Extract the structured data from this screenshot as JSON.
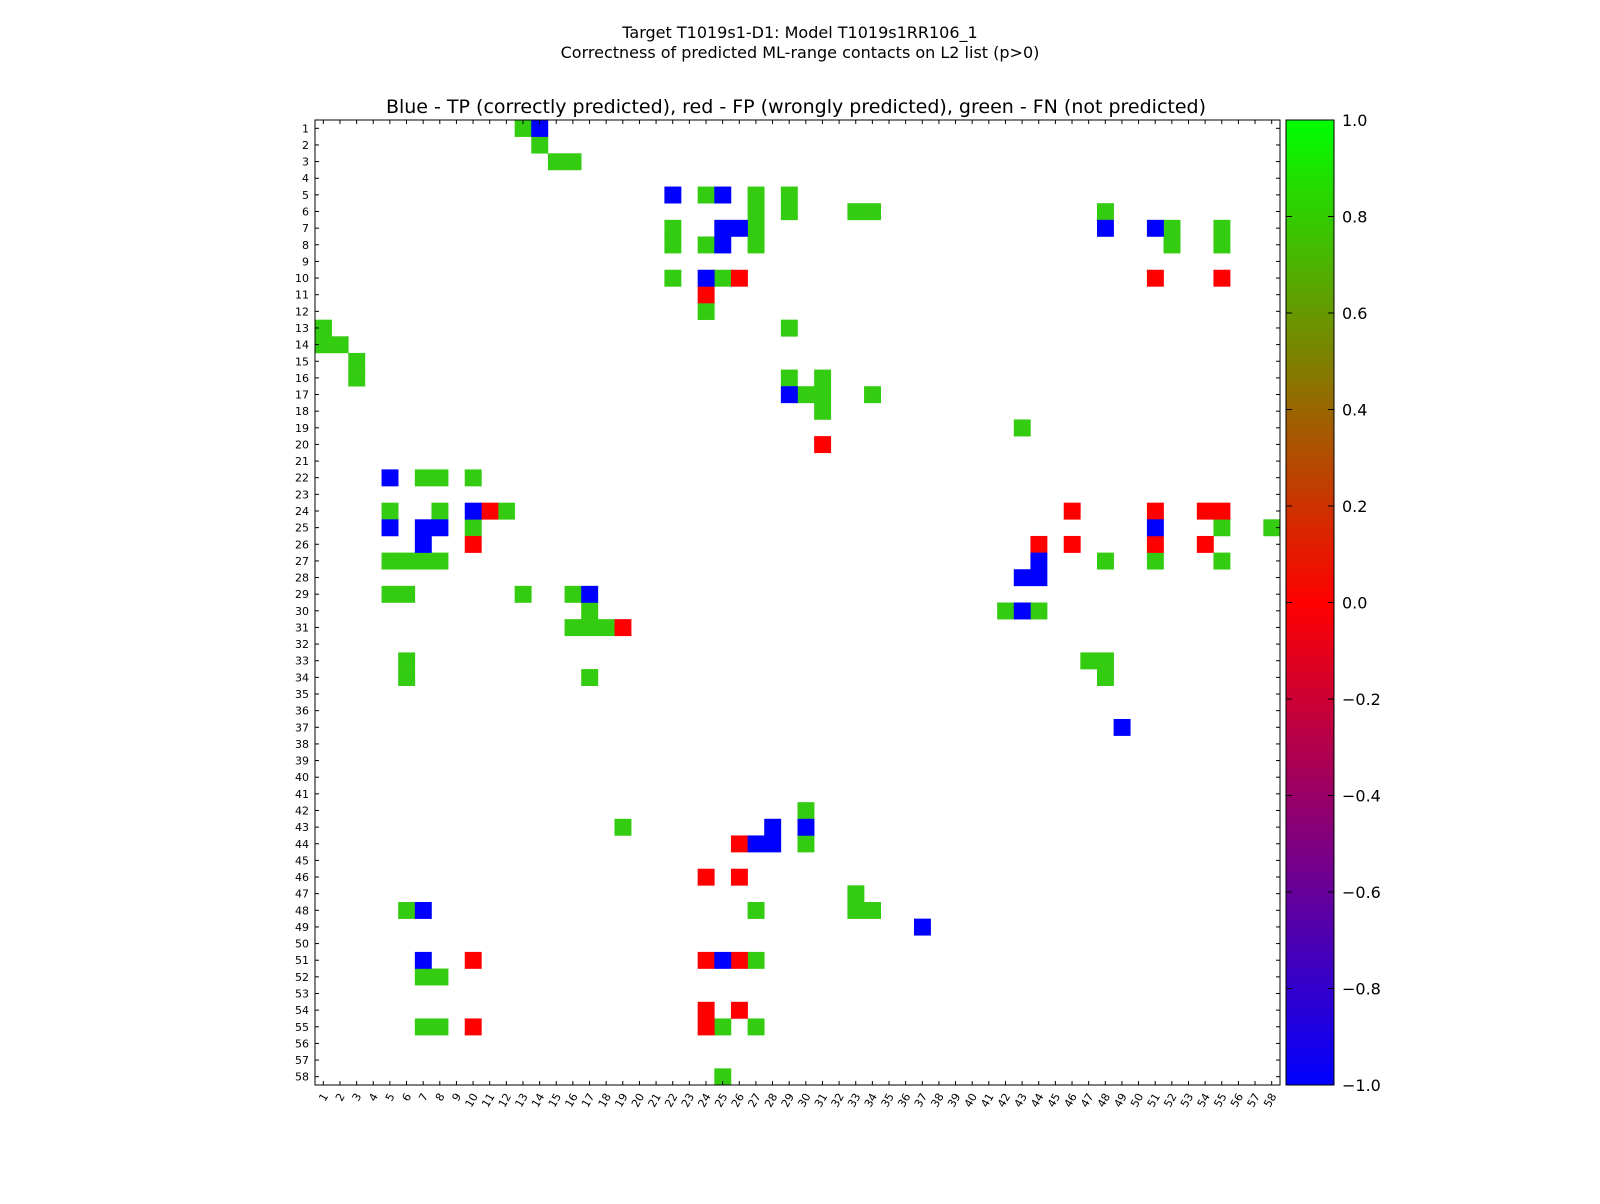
{
  "chart_data": {
    "type": "heatmap",
    "suptitle_line1": "Target T1019s1-D1: Model T1019s1RR106_1",
    "suptitle_line2": "Correctness of predicted ML-range contacts on L2 list (p>0)",
    "title": "Blue - TP (correctly predicted), red - FP (wrongly predicted), green - FN (not predicted)",
    "xlabel": "",
    "ylabel": "",
    "n": 58,
    "x_range": [
      1,
      58
    ],
    "y_range": [
      1,
      58
    ],
    "colorbar": {
      "range": [
        -1.0,
        1.0
      ],
      "ticks": [
        "1.0",
        "0.8",
        "0.6",
        "0.4",
        "0.2",
        "0.0",
        "−0.2",
        "−0.4",
        "−0.6",
        "−0.8",
        "−1.0"
      ],
      "tick_values": [
        1.0,
        0.8,
        0.6,
        0.4,
        0.2,
        0.0,
        -0.2,
        -0.4,
        -0.6,
        -0.8,
        -1.0
      ],
      "stops": [
        {
          "value": -1.0,
          "color": "#0000ff"
        },
        {
          "value": 0.0,
          "color": "#ff0000"
        },
        {
          "value": 1.0,
          "color": "#00ff00"
        }
      ]
    },
    "category_colors": {
      "TP": "#0000ff",
      "FP": "#ff0000",
      "FN": "#33cc11"
    },
    "cells": {
      "TP": [
        [
          14,
          1
        ],
        [
          22,
          5
        ],
        [
          25,
          5
        ],
        [
          25,
          7
        ],
        [
          26,
          7
        ],
        [
          48,
          7
        ],
        [
          51,
          7
        ],
        [
          25,
          8
        ],
        [
          24,
          10
        ],
        [
          29,
          17
        ],
        [
          5,
          22
        ],
        [
          10,
          24
        ],
        [
          5,
          25
        ],
        [
          7,
          25
        ],
        [
          8,
          25
        ],
        [
          51,
          25
        ],
        [
          7,
          26
        ],
        [
          44,
          27
        ],
        [
          43,
          28
        ],
        [
          44,
          28
        ],
        [
          17,
          29
        ],
        [
          43,
          30
        ],
        [
          49,
          37
        ],
        [
          28,
          43
        ],
        [
          30,
          43
        ],
        [
          27,
          44
        ],
        [
          28,
          44
        ],
        [
          7,
          48
        ],
        [
          37,
          49
        ],
        [
          7,
          51
        ],
        [
          25,
          51
        ]
      ],
      "FP": [
        [
          26,
          10
        ],
        [
          51,
          10
        ],
        [
          55,
          10
        ],
        [
          24,
          11
        ],
        [
          31,
          20
        ],
        [
          11,
          24
        ],
        [
          46,
          24
        ],
        [
          51,
          24
        ],
        [
          54,
          24
        ],
        [
          55,
          24
        ],
        [
          10,
          26
        ],
        [
          44,
          26
        ],
        [
          46,
          26
        ],
        [
          51,
          26
        ],
        [
          54,
          26
        ],
        [
          19,
          31
        ],
        [
          26,
          44
        ],
        [
          24,
          46
        ],
        [
          26,
          46
        ],
        [
          10,
          51
        ],
        [
          24,
          51
        ],
        [
          26,
          51
        ],
        [
          24,
          54
        ],
        [
          26,
          54
        ],
        [
          10,
          55
        ],
        [
          24,
          55
        ]
      ],
      "FN": [
        [
          13,
          1
        ],
        [
          14,
          2
        ],
        [
          15,
          3
        ],
        [
          16,
          3
        ],
        [
          24,
          5
        ],
        [
          27,
          5
        ],
        [
          29,
          5
        ],
        [
          27,
          6
        ],
        [
          29,
          6
        ],
        [
          33,
          6
        ],
        [
          34,
          6
        ],
        [
          48,
          6
        ],
        [
          22,
          7
        ],
        [
          27,
          7
        ],
        [
          52,
          7
        ],
        [
          55,
          7
        ],
        [
          22,
          8
        ],
        [
          24,
          8
        ],
        [
          27,
          8
        ],
        [
          52,
          8
        ],
        [
          55,
          8
        ],
        [
          22,
          10
        ],
        [
          25,
          10
        ],
        [
          24,
          12
        ],
        [
          1,
          13
        ],
        [
          29,
          13
        ],
        [
          1,
          14
        ],
        [
          2,
          14
        ],
        [
          3,
          15
        ],
        [
          3,
          16
        ],
        [
          29,
          16
        ],
        [
          31,
          16
        ],
        [
          30,
          17
        ],
        [
          31,
          17
        ],
        [
          34,
          17
        ],
        [
          31,
          18
        ],
        [
          43,
          19
        ],
        [
          7,
          22
        ],
        [
          8,
          22
        ],
        [
          10,
          22
        ],
        [
          5,
          24
        ],
        [
          8,
          24
        ],
        [
          12,
          24
        ],
        [
          10,
          25
        ],
        [
          55,
          25
        ],
        [
          58,
          25
        ],
        [
          5,
          27
        ],
        [
          6,
          27
        ],
        [
          7,
          27
        ],
        [
          8,
          27
        ],
        [
          48,
          27
        ],
        [
          51,
          27
        ],
        [
          55,
          27
        ],
        [
          5,
          29
        ],
        [
          6,
          29
        ],
        [
          13,
          29
        ],
        [
          16,
          29
        ],
        [
          17,
          30
        ],
        [
          42,
          30
        ],
        [
          44,
          30
        ],
        [
          16,
          31
        ],
        [
          17,
          31
        ],
        [
          18,
          31
        ],
        [
          6,
          33
        ],
        [
          47,
          33
        ],
        [
          48,
          33
        ],
        [
          6,
          34
        ],
        [
          17,
          34
        ],
        [
          48,
          34
        ],
        [
          30,
          42
        ],
        [
          19,
          43
        ],
        [
          30,
          44
        ],
        [
          33,
          47
        ],
        [
          6,
          48
        ],
        [
          27,
          48
        ],
        [
          33,
          48
        ],
        [
          34,
          48
        ],
        [
          27,
          51
        ],
        [
          7,
          52
        ],
        [
          8,
          52
        ],
        [
          25,
          55
        ],
        [
          27,
          55
        ],
        [
          7,
          55
        ],
        [
          8,
          55
        ],
        [
          25,
          58
        ]
      ]
    }
  }
}
